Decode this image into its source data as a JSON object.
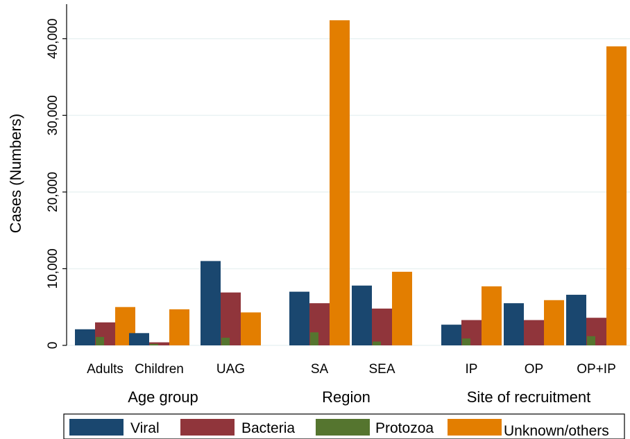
{
  "chart_data": {
    "type": "bar",
    "ylabel": "Cases (Numbers)",
    "ylim": [
      0,
      44500
    ],
    "yticks": [
      0,
      10000,
      20000,
      30000,
      40000
    ],
    "ytick_labels": [
      "0",
      "10,000",
      "20,000",
      "30,000",
      "40,000"
    ],
    "grid": "horizontal",
    "legend_position": "bottom",
    "groups": [
      {
        "label": "Age group",
        "categories": [
          "Adults",
          "Children",
          "UAG"
        ]
      },
      {
        "label": "Region",
        "categories": [
          "SA",
          "SEA"
        ]
      },
      {
        "label": "Site of recruitment",
        "categories": [
          "IP",
          "OP",
          "OP+IP"
        ]
      }
    ],
    "categories": [
      "Adults",
      "Children",
      "UAG",
      "SA",
      "SEA",
      "IP",
      "OP",
      "OP+IP"
    ],
    "series": [
      {
        "name": "Viral",
        "color": "#1a476f",
        "values": [
          2100,
          1600,
          11000,
          7000,
          7800,
          2700,
          5500,
          6600
        ]
      },
      {
        "name": "Bacteria",
        "color": "#90353b",
        "values": [
          3000,
          400,
          6900,
          5500,
          4800,
          3300,
          3300,
          3600
        ]
      },
      {
        "name": "Protozoa",
        "color": "#55752f",
        "values": [
          1100,
          200,
          1000,
          1700,
          500,
          900,
          0,
          1200
        ]
      },
      {
        "name": "Unknown/others",
        "color": "#e37e00",
        "values": [
          5000,
          4700,
          4300,
          42400,
          9600,
          7700,
          5900,
          39000
        ]
      }
    ]
  }
}
